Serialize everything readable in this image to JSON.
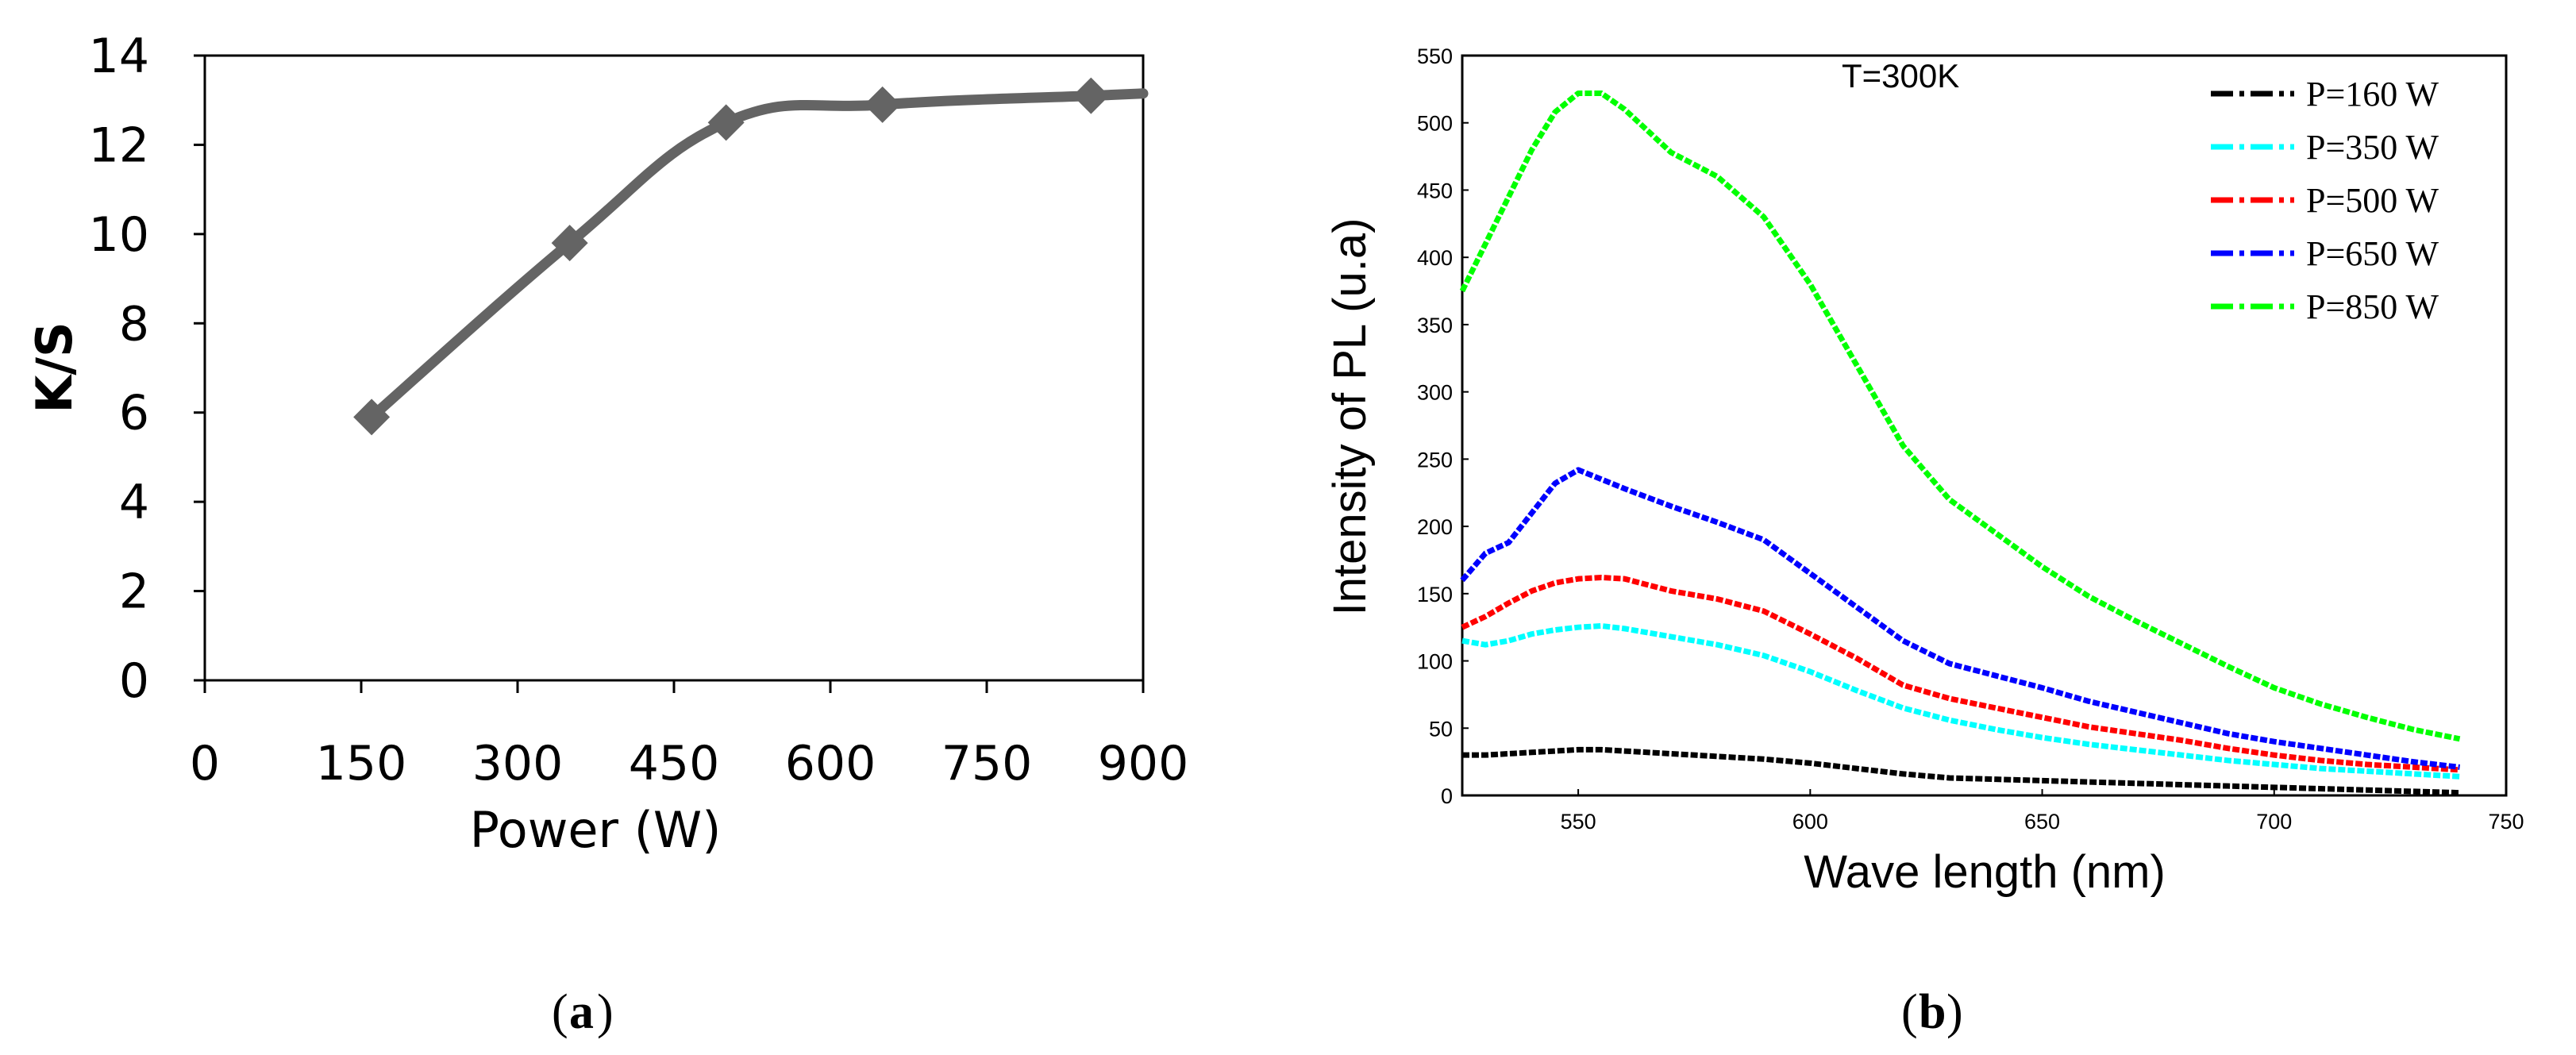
{
  "panel_labels": {
    "a": "a",
    "b": "b"
  },
  "chart_data": [
    {
      "type": "line",
      "panel": "a",
      "title": "",
      "xlabel": "Power (W)",
      "ylabel": "K/S",
      "xlim": [
        0,
        900
      ],
      "ylim": [
        0,
        14
      ],
      "xticks": [
        "0",
        "150",
        "300",
        "450",
        "600",
        "750",
        "900"
      ],
      "yticks": [
        "0",
        "2",
        "4",
        "6",
        "8",
        "10",
        "12",
        "14"
      ],
      "grid": false,
      "marker": "diamond",
      "color": "#646464",
      "series": [
        {
          "name": "K/S",
          "x": [
            160,
            350,
            500,
            650,
            850
          ],
          "y": [
            5.9,
            9.8,
            12.5,
            12.9,
            13.1
          ]
        }
      ],
      "curve_extends_to": {
        "x": 900,
        "y": 13.15
      }
    },
    {
      "type": "line",
      "panel": "b",
      "title": "",
      "annotation": "T=300K",
      "xlabel": "Wave length (nm)",
      "ylabel": "Intensity of PL (u.a)",
      "xlim": [
        525,
        750
      ],
      "ylim": [
        0,
        550
      ],
      "xticks": [
        "550",
        "600",
        "650",
        "700",
        "750"
      ],
      "yticks": [
        "0",
        "50",
        "100",
        "150",
        "200",
        "250",
        "300",
        "350",
        "400",
        "450",
        "500",
        "550"
      ],
      "grid": false,
      "legend_position": "top-right",
      "x": [
        525,
        530,
        535,
        540,
        545,
        550,
        555,
        560,
        570,
        580,
        590,
        600,
        610,
        620,
        630,
        640,
        650,
        660,
        670,
        680,
        690,
        700,
        710,
        720,
        730,
        740
      ],
      "series": [
        {
          "name": "P=160 W",
          "color": "#000000",
          "values": [
            30,
            30,
            31,
            32,
            33,
            34,
            34,
            33,
            31,
            29,
            27,
            24,
            20,
            16,
            13,
            12,
            11,
            10,
            9,
            8,
            7,
            6,
            5,
            4,
            3,
            2
          ]
        },
        {
          "name": "P=350 W",
          "color": "#00ffff",
          "values": [
            115,
            112,
            115,
            120,
            123,
            125,
            126,
            124,
            118,
            112,
            104,
            92,
            78,
            65,
            56,
            49,
            43,
            38,
            34,
            30,
            26,
            23,
            20,
            18,
            16,
            14
          ]
        },
        {
          "name": "P=500 W",
          "color": "#ff0000",
          "values": [
            125,
            133,
            143,
            152,
            158,
            161,
            162,
            161,
            152,
            146,
            137,
            120,
            102,
            82,
            72,
            65,
            58,
            51,
            46,
            41,
            35,
            30,
            26,
            23,
            21,
            19
          ]
        },
        {
          "name": "P=650 W",
          "color": "#0000ff",
          "values": [
            160,
            180,
            188,
            210,
            232,
            242,
            235,
            228,
            215,
            203,
            190,
            165,
            140,
            115,
            98,
            89,
            80,
            70,
            62,
            54,
            46,
            40,
            35,
            30,
            25,
            21
          ]
        },
        {
          "name": "P=850 W",
          "color": "#00ff00",
          "values": [
            375,
            410,
            445,
            480,
            508,
            522,
            522,
            510,
            478,
            460,
            430,
            380,
            320,
            260,
            220,
            195,
            170,
            148,
            130,
            113,
            96,
            80,
            68,
            58,
            49,
            42
          ]
        }
      ]
    }
  ]
}
